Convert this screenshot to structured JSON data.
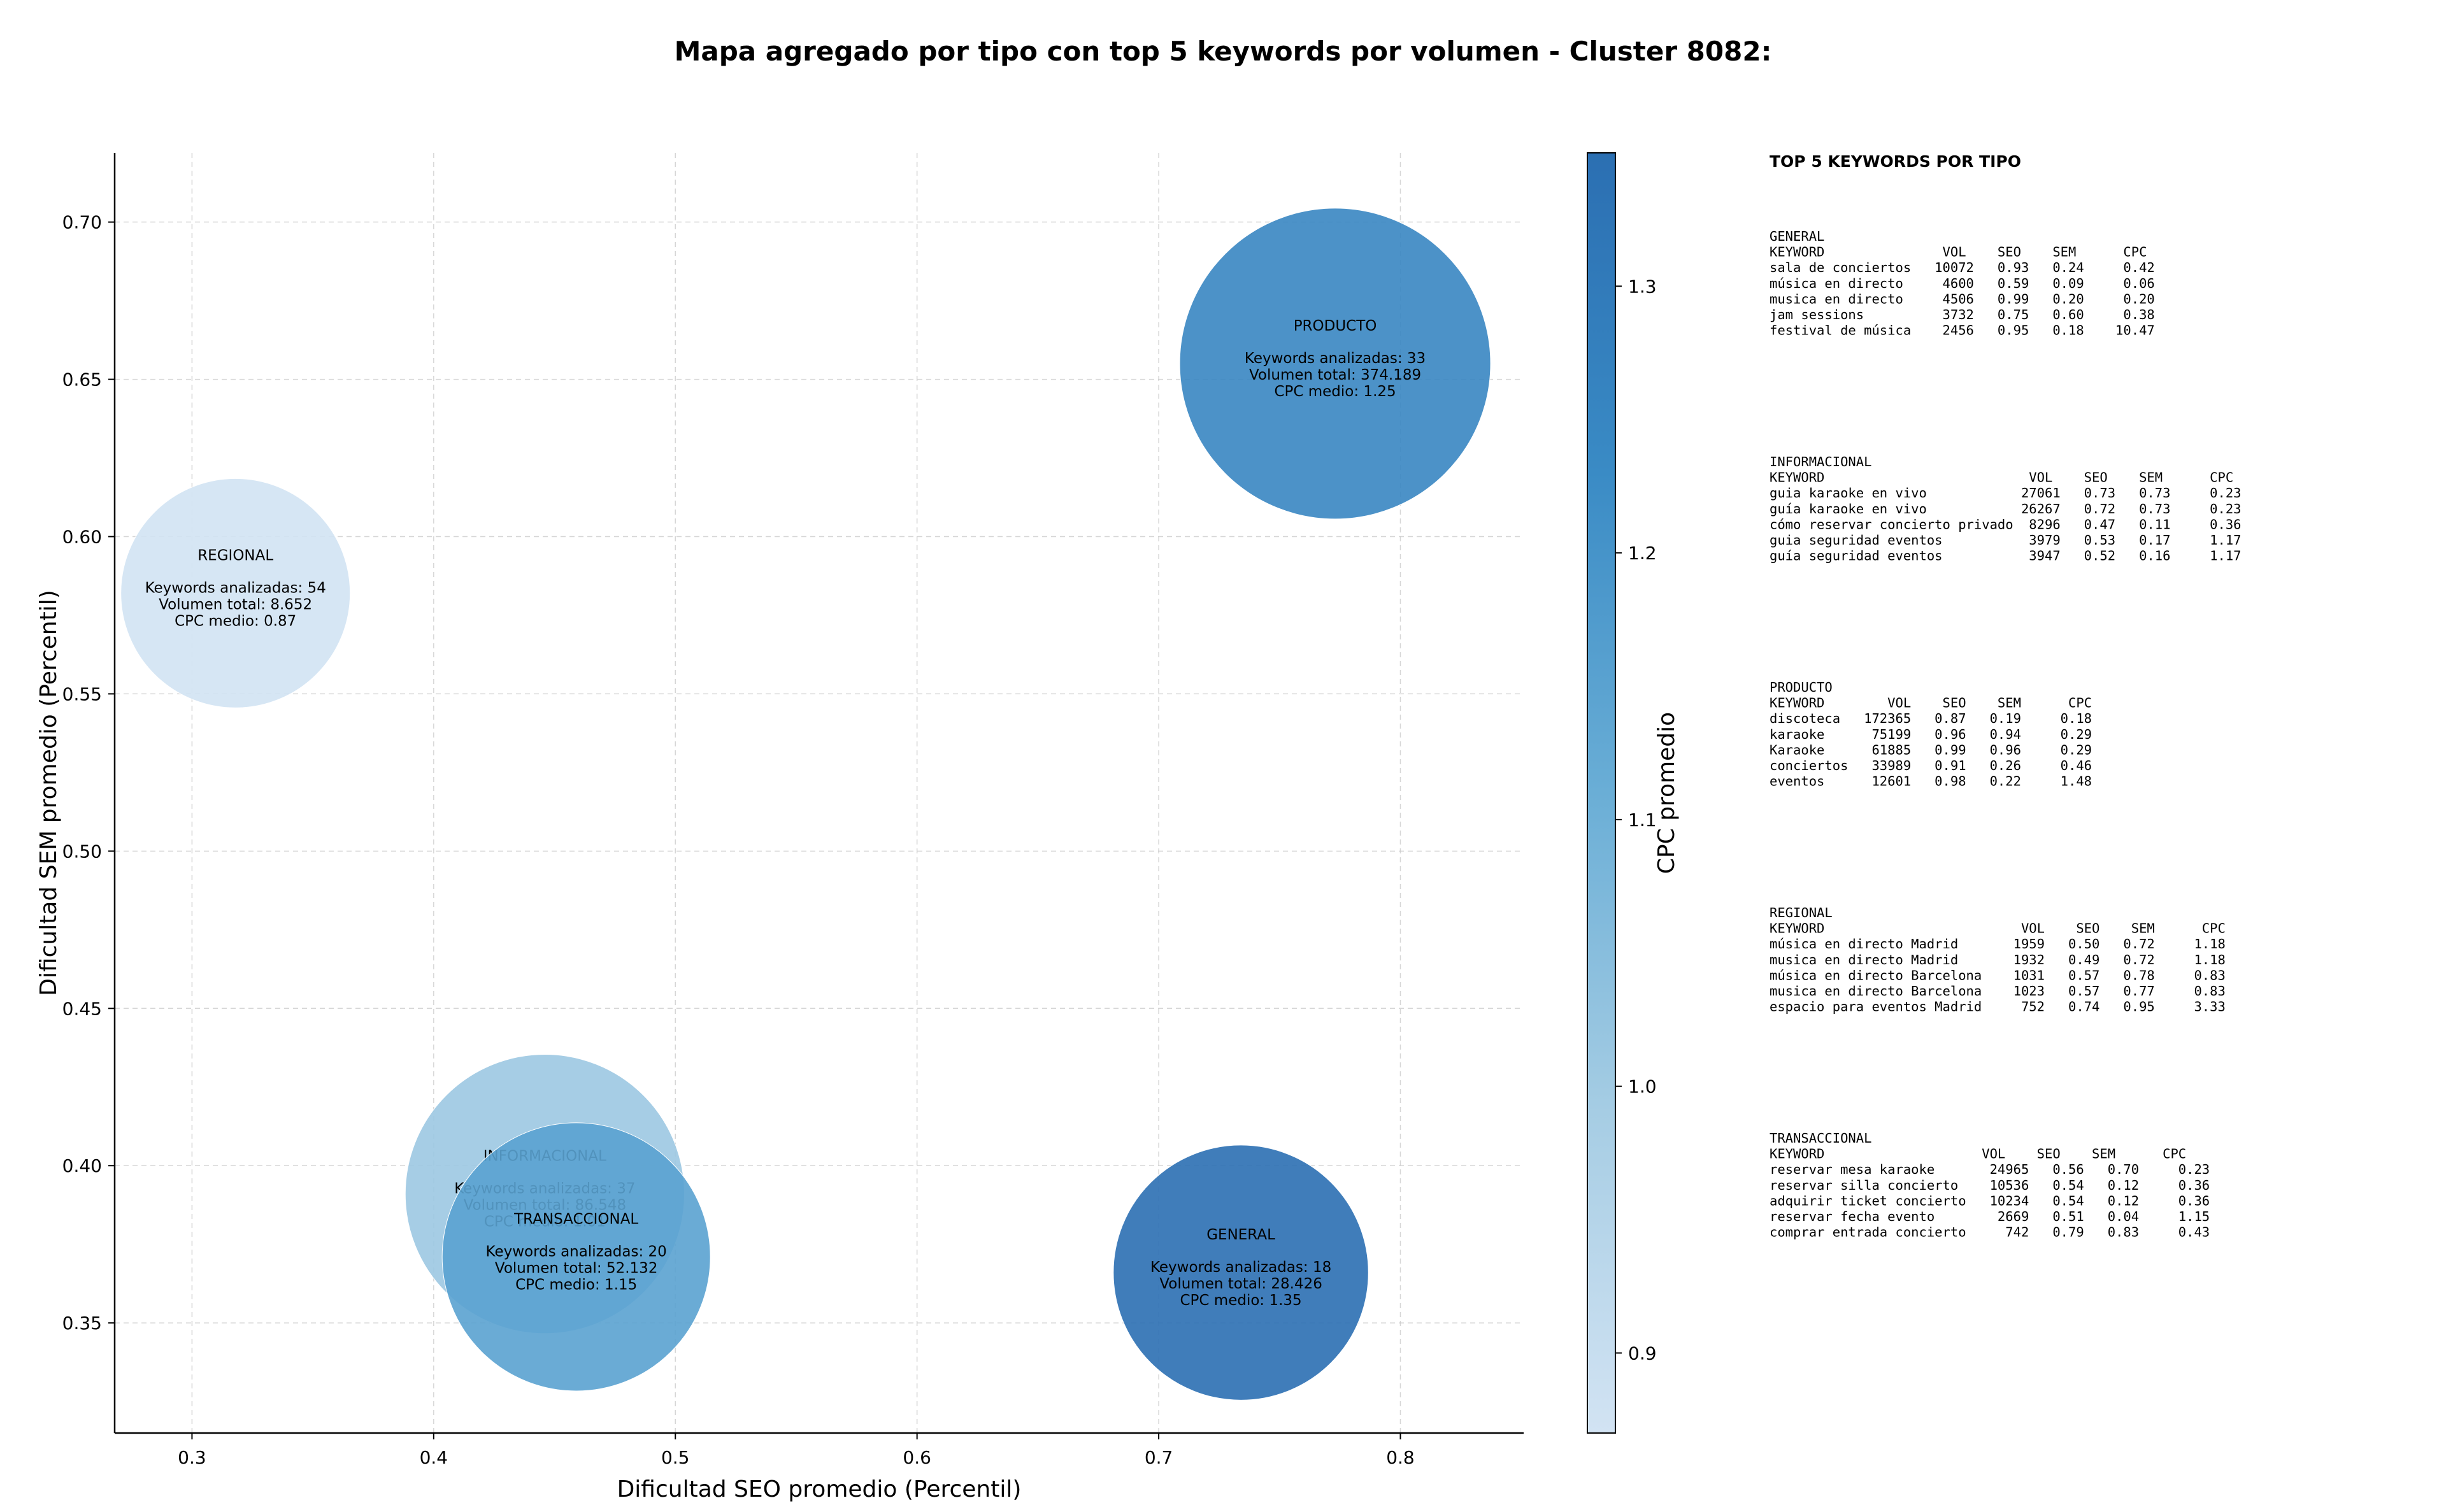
{
  "title": "Mapa agregado por tipo con top 5 keywords por volumen - Cluster 8082:",
  "chart_data": {
    "type": "scatter",
    "xlabel": "Dificultad SEO promedio (Percentil)",
    "ylabel": "Dificultad SEM promedio (Percentil)",
    "xlim": [
      0.268,
      0.851
    ],
    "ylim": [
      0.315,
      0.722
    ],
    "xticks": [
      "0.3",
      "0.4",
      "0.5",
      "0.6",
      "0.7",
      "0.8"
    ],
    "yticks": [
      "0.35",
      "0.40",
      "0.45",
      "0.50",
      "0.55",
      "0.60",
      "0.65",
      "0.70"
    ],
    "grid": true,
    "colorbar": {
      "label": "CPC promedio",
      "min": 0.87,
      "max": 1.35,
      "ticks": [
        "0.9",
        "1.0",
        "1.1",
        "1.2",
        "1.3"
      ],
      "colors": [
        "#d2e3f3",
        "#a6cde4",
        "#6aaed6",
        "#3a8bc5",
        "#2b6fb2"
      ]
    },
    "points": [
      {
        "name": "REGIONAL",
        "x": 0.318,
        "y": 0.582,
        "keywords_label": "Keywords analizadas: 54",
        "volume_label": "Volumen total: 8.652",
        "cpc_label": "CPC medio: 0.87",
        "cpc": 0.87,
        "keywords": 54,
        "volume": 8652
      },
      {
        "name": "PRODUCTO",
        "x": 0.773,
        "y": 0.655,
        "keywords_label": "Keywords analizadas: 33",
        "volume_label": "Volumen total: 374.189",
        "cpc_label": "CPC medio: 1.25",
        "cpc": 1.25,
        "keywords": 33,
        "volume": 374189
      },
      {
        "name": "INFORMACIONAL",
        "x": 0.446,
        "y": 0.391,
        "keywords_label": "Keywords analizadas: 37",
        "volume_label": "Volumen total: 86.548",
        "cpc_label": "CPC medio: 1.01",
        "cpc": 1.01,
        "keywords": 37,
        "volume": 86548
      },
      {
        "name": "TRANSACCIONAL",
        "x": 0.459,
        "y": 0.371,
        "keywords_label": "Keywords analizadas: 20",
        "volume_label": "Volumen total: 52.132",
        "cpc_label": "CPC medio: 1.15",
        "cpc": 1.15,
        "keywords": 20,
        "volume": 52132
      },
      {
        "name": "GENERAL",
        "x": 0.734,
        "y": 0.366,
        "keywords_label": "Keywords analizadas: 18",
        "volume_label": "Volumen total: 28.426",
        "cpc_label": "CPC medio: 1.35",
        "cpc": 1.35,
        "keywords": 18,
        "volume": 28426
      }
    ]
  },
  "panel": {
    "heading": "TOP 5 KEYWORDS POR TIPO",
    "blocks": [
      {
        "type": "GENERAL",
        "header": "KEYWORD               VOL    SEO    SEM      CPC",
        "rows": [
          "sala de conciertos   10072   0.93   0.24     0.42",
          "música en directo     4600   0.59   0.09     0.06",
          "musica en directo     4506   0.99   0.20     0.20",
          "jam sessions          3732   0.75   0.60     0.38",
          "festival de música    2456   0.95   0.18    10.47"
        ]
      },
      {
        "type": "INFORMACIONAL",
        "header": "KEYWORD                          VOL    SEO    SEM      CPC",
        "rows": [
          "guia karaoke en vivo            27061   0.73   0.73     0.23",
          "guía karaoke en vivo            26267   0.72   0.73     0.23",
          "cómo reservar concierto privado  8296   0.47   0.11     0.36",
          "guia seguridad eventos           3979   0.53   0.17     1.17",
          "guía seguridad eventos           3947   0.52   0.16     1.17"
        ]
      },
      {
        "type": "PRODUCTO",
        "header": "KEYWORD        VOL    SEO    SEM      CPC",
        "rows": [
          "discoteca   172365   0.87   0.19     0.18",
          "karaoke      75199   0.96   0.94     0.29",
          "Karaoke      61885   0.99   0.96     0.29",
          "conciertos   33989   0.91   0.26     0.46",
          "eventos      12601   0.98   0.22     1.48"
        ]
      },
      {
        "type": "REGIONAL",
        "header": "KEYWORD                         VOL    SEO    SEM      CPC",
        "rows": [
          "música en directo Madrid       1959   0.50   0.72     1.18",
          "musica en directo Madrid       1932   0.49   0.72     1.18",
          "música en directo Barcelona    1031   0.57   0.78     0.83",
          "musica en directo Barcelona    1023   0.57   0.77     0.83",
          "espacio para eventos Madrid     752   0.74   0.95     3.33"
        ]
      },
      {
        "type": "TRANSACCIONAL",
        "header": "KEYWORD                    VOL    SEO    SEM      CPC",
        "rows": [
          "reservar mesa karaoke       24965   0.56   0.70     0.23",
          "reservar silla concierto    10536   0.54   0.12     0.36",
          "adquirir ticket concierto   10234   0.54   0.12     0.36",
          "reservar fecha evento        2669   0.51   0.04     1.15",
          "comprar entrada concierto     742   0.79   0.83     0.43"
        ]
      }
    ]
  }
}
